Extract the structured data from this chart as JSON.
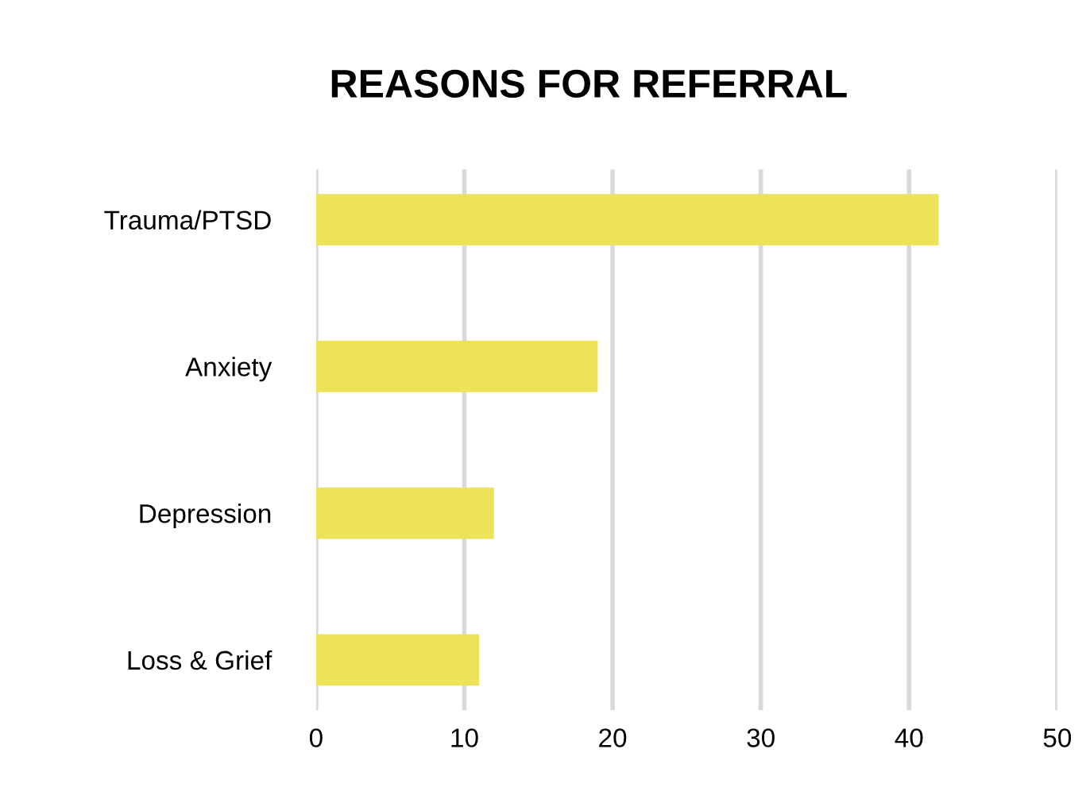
{
  "chart_data": {
    "type": "bar",
    "orientation": "horizontal",
    "title": "REASONS FOR REFERRAL",
    "categories": [
      "Trauma/PTSD",
      "Anxiety",
      "Depression",
      "Loss & Grief"
    ],
    "values": [
      42,
      19,
      12,
      11
    ],
    "color": "#ece35a",
    "xlim": [
      0,
      50
    ],
    "xticks": [
      0,
      10,
      20,
      30,
      40,
      50
    ],
    "grid": "x"
  }
}
